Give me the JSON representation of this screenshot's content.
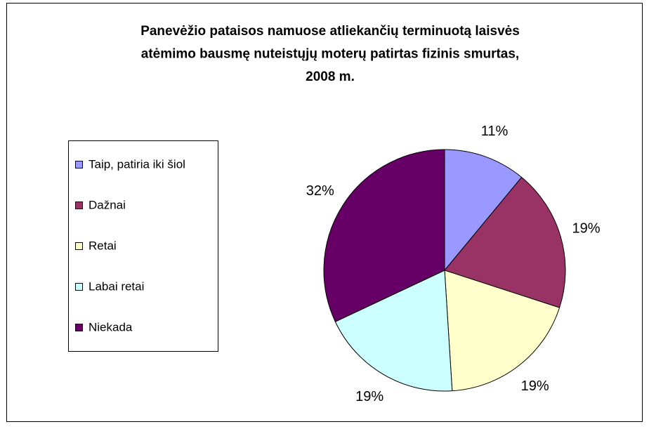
{
  "chart_data": {
    "type": "pie",
    "title": [
      "Panevėžio pataisos namuose atliekančių terminuotą laisvės",
      "atėmimo bausmę nuteistųjų moterų patirtas fizinis smurtas,",
      "2008 m."
    ],
    "categories": [
      "Taip, patiria iki šiol",
      "Dažnai",
      "Retai",
      "Labai retai",
      "Niekada"
    ],
    "values": [
      11,
      19,
      19,
      19,
      32
    ],
    "value_labels": [
      "11%",
      "19%",
      "19%",
      "19%",
      "32%"
    ],
    "colors": [
      "#9999ff",
      "#993366",
      "#ffffcc",
      "#ccffff",
      "#660066"
    ],
    "legend": "left"
  }
}
